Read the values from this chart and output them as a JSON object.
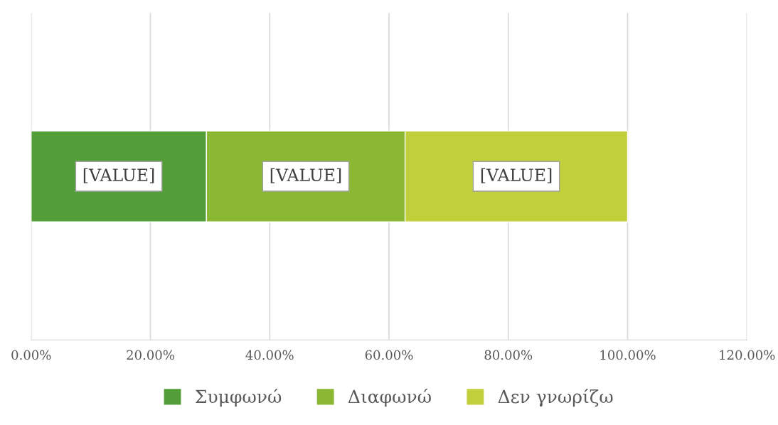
{
  "chart_data": {
    "type": "bar",
    "orientation": "horizontal",
    "stacked": true,
    "categories": [
      null
    ],
    "series": [
      {
        "name": "Συμφωνώ",
        "color": "#549e39",
        "values": [
          29.4
        ],
        "value_labels": [
          "[VALUE]"
        ]
      },
      {
        "name": "Διαφωνώ",
        "color": "#8ab833",
        "values": [
          33.3
        ],
        "value_labels": [
          "[VALUE]"
        ]
      },
      {
        "name": "Δεν γνωρίζω",
        "color": "#c0cf3a",
        "values": [
          37.3
        ],
        "value_labels": [
          "[VALUE]"
        ]
      }
    ],
    "xlim": [
      0,
      120
    ],
    "xticks": [
      {
        "value": 0,
        "label": "0.00%"
      },
      {
        "value": 20,
        "label": "20.00%"
      },
      {
        "value": 40,
        "label": "40.00%"
      },
      {
        "value": 60,
        "label": "60.00%"
      },
      {
        "value": 80,
        "label": "80.00%"
      },
      {
        "value": 100,
        "label": "100.00%"
      },
      {
        "value": 120,
        "label": "120.00%"
      }
    ],
    "grid": "x",
    "legend": "bottom"
  }
}
